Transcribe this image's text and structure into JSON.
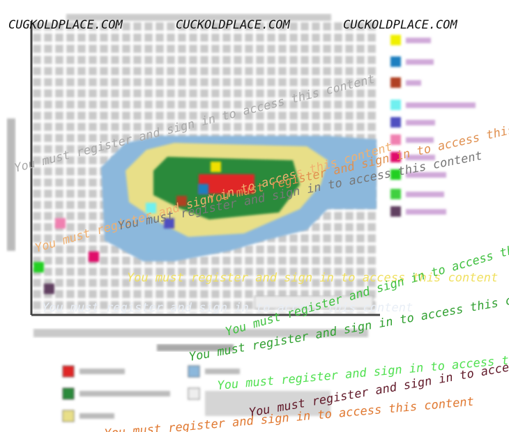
{
  "watermarks": {
    "site": [
      "CUGKOLDPLACE.COM",
      "CUCKOLDPLACE.COM",
      "CUCKOLDPLACE.COM"
    ],
    "notices": [
      "You must register and sign in to access this content",
      "You must register and sign in to access this content",
      "You must register and sign in to access this content",
      "You must register and sign in to access this content",
      "You must register and sign in to access this content",
      "You must register and sign in to access this content",
      "You must register and sign in to access this content",
      "You must register and sign in to access this content",
      "You must register and sign in to access this content",
      "You must register and sign in to access this content",
      "You must register and sign in to access this content"
    ]
  }
}
